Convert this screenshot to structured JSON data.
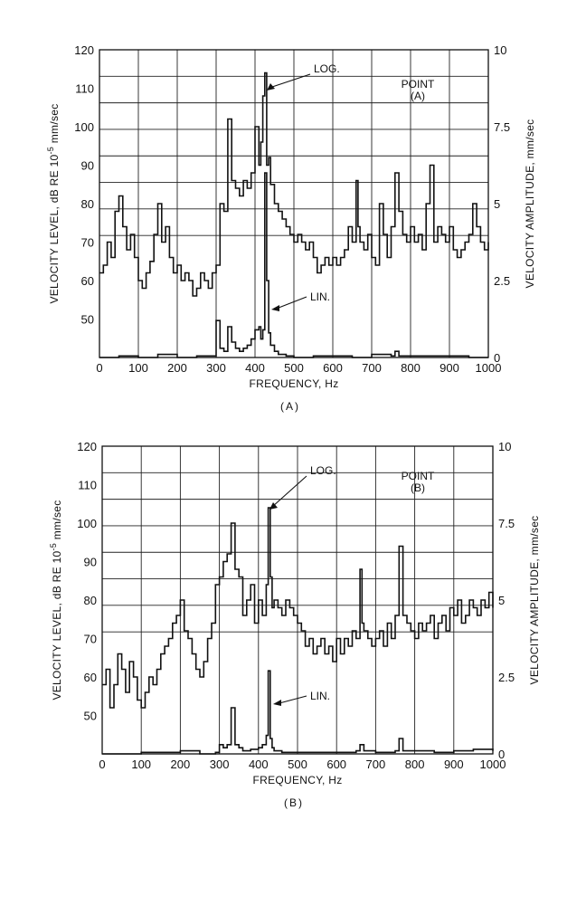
{
  "chart_data": [
    {
      "type": "line",
      "panel_label": "(A)",
      "point_label": "POINT",
      "point_id": "(A)",
      "xlabel": "FREQUENCY, Hz",
      "ylabel_left": "VELOCITY LEVEL, dB RE 10",
      "ylabel_left_exp": "-5",
      "ylabel_left_unit": " mm/sec",
      "ylabel_right": "VELOCITY AMPLITUDE, mm/sec",
      "xlim": [
        0,
        1000
      ],
      "ylim_left": [
        40,
        120
      ],
      "ylim_right": [
        0,
        10
      ],
      "grid": true,
      "x_ticks": [
        "0",
        "100",
        "200",
        "300",
        "400",
        "500",
        "600",
        "700",
        "800",
        "900",
        "1000"
      ],
      "y_ticks_left": [
        "120",
        "110",
        "100",
        "90",
        "80",
        "70",
        "60",
        "50"
      ],
      "y_ticks_right": [
        "10",
        "7.5",
        "5",
        "2.5",
        "0"
      ],
      "annotations": {
        "log": "LOG.",
        "lin": "LIN."
      },
      "series": [
        {
          "name": "LOG.",
          "axis": "left",
          "x": [
            0,
            10,
            20,
            30,
            40,
            50,
            60,
            70,
            80,
            90,
            100,
            110,
            120,
            130,
            140,
            150,
            160,
            170,
            180,
            190,
            200,
            210,
            220,
            230,
            240,
            250,
            260,
            270,
            280,
            290,
            300,
            310,
            320,
            330,
            340,
            350,
            360,
            370,
            380,
            390,
            400,
            410,
            415,
            420,
            425,
            430,
            435,
            440,
            450,
            460,
            470,
            480,
            490,
            500,
            510,
            520,
            530,
            540,
            550,
            560,
            570,
            580,
            590,
            600,
            610,
            620,
            630,
            640,
            650,
            660,
            665,
            670,
            680,
            690,
            700,
            710,
            720,
            730,
            740,
            750,
            760,
            770,
            780,
            790,
            800,
            810,
            820,
            830,
            840,
            850,
            860,
            870,
            880,
            890,
            900,
            910,
            920,
            930,
            940,
            950,
            960,
            970,
            980,
            990,
            1000
          ],
          "y": [
            62,
            64,
            70,
            66,
            78,
            82,
            74,
            68,
            72,
            66,
            60,
            58,
            62,
            65,
            72,
            80,
            70,
            74,
            66,
            62,
            64,
            60,
            62,
            60,
            56,
            58,
            62,
            60,
            58,
            62,
            64,
            80,
            78,
            102,
            86,
            84,
            82,
            86,
            84,
            88,
            100,
            90,
            96,
            108,
            114,
            90,
            92,
            85,
            80,
            78,
            76,
            74,
            72,
            70,
            72,
            70,
            68,
            70,
            66,
            62,
            64,
            66,
            64,
            66,
            64,
            66,
            68,
            74,
            70,
            86,
            74,
            70,
            68,
            72,
            66,
            64,
            80,
            72,
            66,
            74,
            88,
            78,
            72,
            70,
            74,
            70,
            72,
            68,
            80,
            90,
            70,
            74,
            72,
            70,
            74,
            68,
            66,
            68,
            70,
            72,
            80,
            74,
            70,
            68,
            70
          ]
        },
        {
          "name": "LIN.",
          "axis": "right",
          "x": [
            0,
            50,
            100,
            150,
            200,
            250,
            290,
            300,
            310,
            320,
            330,
            340,
            350,
            360,
            370,
            380,
            390,
            400,
            410,
            415,
            420,
            425,
            430,
            435,
            440,
            450,
            460,
            480,
            500,
            550,
            600,
            650,
            700,
            750,
            760,
            770,
            800,
            850,
            900,
            950,
            1000
          ],
          "y": [
            0,
            0.05,
            0,
            0.1,
            0,
            0.05,
            0.05,
            1.2,
            0.3,
            0.2,
            1.0,
            0.5,
            0.3,
            0.2,
            0.3,
            0.4,
            0.6,
            0.9,
            1.0,
            0.6,
            0.9,
            6.0,
            2.5,
            0.8,
            0.4,
            0.2,
            0.1,
            0.05,
            0,
            0.05,
            0.05,
            0,
            0.1,
            0.05,
            0.2,
            0.05,
            0.05,
            0.05,
            0.05,
            0,
            0
          ]
        }
      ]
    },
    {
      "type": "line",
      "panel_label": "(B)",
      "point_label": "POINT",
      "point_id": "(B)",
      "xlabel": "FREQUENCY, Hz",
      "ylabel_left": "VELOCITY LEVEL, dB RE 10",
      "ylabel_left_exp": "-5",
      "ylabel_left_unit": " mm/sec",
      "ylabel_right": "VELOCITY AMPLITUDE, mm/sec",
      "xlim": [
        0,
        1000
      ],
      "ylim_left": [
        40,
        120
      ],
      "ylim_right": [
        0,
        10
      ],
      "grid": true,
      "x_ticks": [
        "0",
        "100",
        "200",
        "300",
        "400",
        "500",
        "600",
        "700",
        "800",
        "900",
        "1000"
      ],
      "y_ticks_left": [
        "120",
        "110",
        "100",
        "90",
        "80",
        "70",
        "60",
        "50"
      ],
      "y_ticks_right": [
        "10",
        "7.5",
        "5",
        "2.5",
        "0"
      ],
      "annotations": {
        "log": "LOG.",
        "lin": "LIN."
      },
      "series": [
        {
          "name": "LOG.",
          "axis": "left",
          "x": [
            0,
            10,
            20,
            30,
            40,
            50,
            60,
            70,
            80,
            90,
            100,
            110,
            120,
            130,
            140,
            150,
            160,
            170,
            180,
            190,
            200,
            210,
            220,
            230,
            240,
            250,
            260,
            270,
            280,
            290,
            300,
            310,
            320,
            330,
            340,
            350,
            360,
            370,
            380,
            390,
            400,
            410,
            420,
            425,
            430,
            435,
            440,
            450,
            460,
            470,
            480,
            490,
            500,
            510,
            520,
            530,
            540,
            550,
            560,
            570,
            580,
            590,
            600,
            610,
            620,
            630,
            640,
            650,
            660,
            665,
            670,
            680,
            690,
            700,
            710,
            720,
            730,
            740,
            750,
            760,
            770,
            780,
            790,
            800,
            810,
            820,
            830,
            840,
            850,
            860,
            870,
            880,
            890,
            900,
            910,
            920,
            930,
            940,
            950,
            960,
            970,
            980,
            990,
            1000
          ],
          "y": [
            58,
            62,
            52,
            58,
            66,
            62,
            56,
            64,
            60,
            54,
            52,
            56,
            60,
            58,
            62,
            66,
            68,
            70,
            74,
            76,
            80,
            72,
            70,
            66,
            62,
            60,
            64,
            70,
            74,
            84,
            86,
            90,
            92,
            100,
            88,
            86,
            76,
            80,
            84,
            74,
            80,
            76,
            84,
            104,
            86,
            78,
            80,
            78,
            76,
            80,
            78,
            76,
            74,
            72,
            68,
            70,
            66,
            68,
            70,
            66,
            68,
            64,
            70,
            66,
            70,
            68,
            72,
            70,
            88,
            74,
            72,
            70,
            68,
            70,
            72,
            68,
            74,
            70,
            76,
            94,
            76,
            74,
            72,
            70,
            74,
            72,
            74,
            76,
            70,
            74,
            76,
            72,
            78,
            76,
            80,
            74,
            76,
            80,
            78,
            76,
            80,
            78,
            82,
            78
          ]
        },
        {
          "name": "LIN.",
          "axis": "right",
          "x": [
            0,
            50,
            100,
            150,
            200,
            250,
            290,
            300,
            310,
            320,
            330,
            340,
            350,
            360,
            380,
            400,
            410,
            420,
            425,
            430,
            435,
            440,
            460,
            500,
            550,
            600,
            650,
            660,
            670,
            700,
            750,
            760,
            770,
            800,
            850,
            900,
            950,
            1000
          ],
          "y": [
            0,
            0,
            0.05,
            0.05,
            0.1,
            0,
            0.05,
            0.3,
            0.2,
            0.3,
            1.5,
            0.3,
            0.2,
            0.1,
            0.15,
            0.2,
            0.3,
            0.6,
            2.7,
            0.5,
            0.2,
            0.1,
            0.05,
            0.05,
            0.05,
            0.05,
            0.1,
            0.3,
            0.1,
            0.05,
            0.1,
            0.5,
            0.1,
            0.1,
            0.05,
            0.1,
            0.15,
            0.1
          ]
        }
      ]
    }
  ]
}
